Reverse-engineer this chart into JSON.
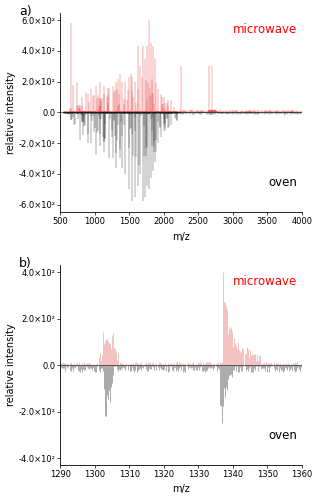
{
  "panel_a": {
    "xmin": 500,
    "xmax": 4000,
    "ymin": -650,
    "ymax": 650,
    "yticks": [
      -600,
      -400,
      -200,
      0,
      200,
      400,
      600
    ],
    "ytick_labels": [
      "-6.0×10²",
      "-4.0×10²",
      "-2.0×10²",
      "0.0",
      "2.0×10²",
      "4.0×10²",
      "6.0×10²"
    ],
    "xticks": [
      500,
      1000,
      1500,
      2000,
      2500,
      3000,
      3500,
      4000
    ],
    "xlabel": "m/z",
    "ylabel": "relative intensity",
    "label_micro": "microwave",
    "label_oven": "oven",
    "color_micro": "#e84040",
    "color_oven": "#303030"
  },
  "panel_b": {
    "xmin": 1290,
    "xmax": 1360,
    "ymin": -430,
    "ymax": 430,
    "yticks": [
      -400,
      -200,
      0,
      200,
      400
    ],
    "ytick_labels": [
      "-4.0×10²",
      "-2.0×10²",
      "0.0",
      "2.0×10²",
      "4.0×10²"
    ],
    "xticks": [
      1290,
      1300,
      1310,
      1320,
      1330,
      1340,
      1350,
      1360
    ],
    "xlabel": "m/z",
    "ylabel": "relative intensity",
    "label_micro": "microwave",
    "label_oven": "oven",
    "color_micro": "#e88888",
    "color_oven": "#505050"
  },
  "fig_bg": "#ffffff",
  "panel_label_fontsize": 9,
  "axis_label_fontsize": 7,
  "tick_fontsize": 6,
  "annotation_fontsize": 8.5
}
